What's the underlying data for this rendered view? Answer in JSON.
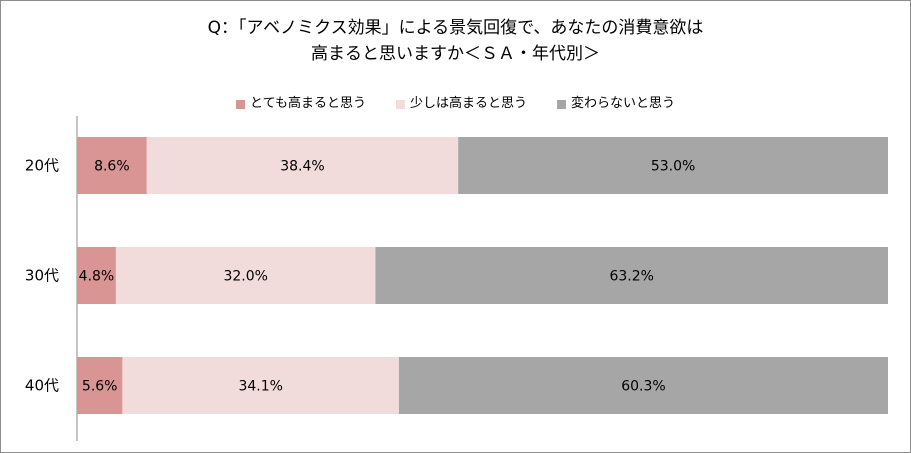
{
  "chart_data": {
    "type": "bar",
    "orientation": "horizontal",
    "stacked": true,
    "title_lines": [
      "Q：「アベノミクス効果」による景気回復で、あなたの消費意欲は",
      "高まると思いますか＜ＳＡ・年代別＞"
    ],
    "categories": [
      "20代",
      "30代",
      "40代"
    ],
    "series": [
      {
        "name": "とても高まると思う",
        "values": [
          8.6,
          4.8,
          5.6
        ],
        "labels": [
          "8.6%",
          "4.8%",
          "5.6%"
        ],
        "color": "#d99594"
      },
      {
        "name": "少しは高まると思う",
        "values": [
          38.4,
          32.0,
          34.1
        ],
        "labels": [
          "38.4%",
          "32.0%",
          "34.1%"
        ],
        "color": "#f2dcdb"
      },
      {
        "name": "変わらないと思う",
        "values": [
          53.0,
          63.2,
          60.3
        ],
        "labels": [
          "53.0%",
          "63.2%",
          "60.3%"
        ],
        "color": "#a6a6a6"
      }
    ],
    "xlim": [
      0,
      100
    ],
    "legend_position": "top",
    "grid": false
  }
}
